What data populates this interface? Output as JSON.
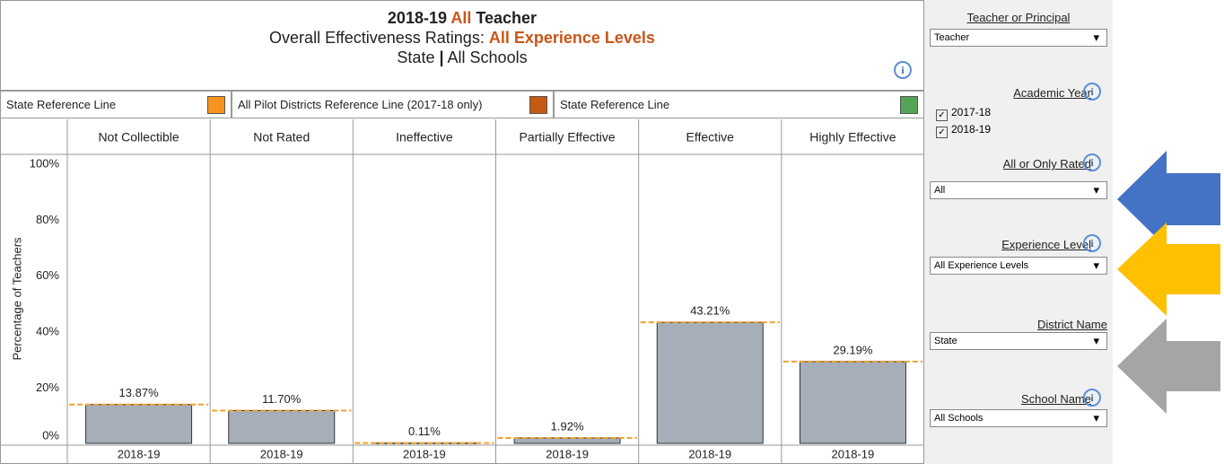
{
  "header": {
    "line1": [
      "2018-19",
      "All",
      "Teacher"
    ],
    "line2": [
      "Overall Effectiveness Ratings:",
      "All Experience Levels"
    ],
    "line3": [
      "State",
      "|",
      "All Schools"
    ]
  },
  "legend": [
    {
      "name": "State Reference Line",
      "color": "#f7941d"
    },
    {
      "name": "All Pilot Districts Reference Line (2017-18 only)",
      "color": "#c55a11"
    },
    {
      "name": "State Reference Line",
      "color": "#55a455"
    }
  ],
  "chart_data": {
    "type": "bar",
    "y_label": "Percentage of Teachers",
    "categories": [
      "Not Collectible",
      "Not Rated",
      "Ineffective",
      "Partially Effective",
      "Effective",
      "Highly Effective"
    ],
    "series": [
      {
        "name": "2018-19",
        "color": "#a6aeb9",
        "reference_color": "#f0a030",
        "values": [
          13.87,
          11.7,
          0.11,
          1.92,
          43.21,
          29.19
        ],
        "value_labels": [
          "13.87%",
          "11.70%",
          "0.11%",
          "1.92%",
          "43.21%",
          "29.19%"
        ]
      }
    ],
    "ylim": [
      0,
      100
    ],
    "yticks": [
      {
        "value": 0,
        "label": "0%"
      },
      {
        "value": 20,
        "label": "20%"
      },
      {
        "value": 40,
        "label": "40%"
      },
      {
        "value": 60,
        "label": "60%"
      },
      {
        "value": 80,
        "label": "80%"
      },
      {
        "value": 100,
        "label": "100%"
      }
    ]
  },
  "filters": [
    {
      "label": "Teacher or Principal",
      "value": "Teacher"
    },
    {
      "label": "Academic Year",
      "options": [
        "2017-18",
        "2018-19"
      ]
    },
    {
      "label": "All or Only Rated",
      "value": "All"
    },
    {
      "label": "Experience Level",
      "value": "All Experience Levels"
    },
    {
      "label": "District Name",
      "value": "State"
    },
    {
      "label": "School Name",
      "value": "All Schools"
    }
  ]
}
